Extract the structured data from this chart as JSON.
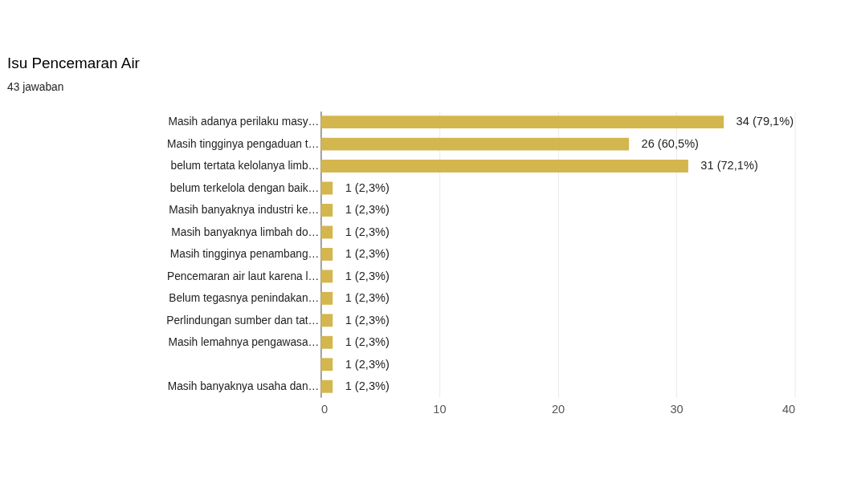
{
  "chart_data": {
    "type": "bar",
    "orientation": "horizontal",
    "title": "Isu  Pencemaran Air",
    "subtitle": "43 jawaban",
    "categories": [
      "Masih adanya perilaku masy…",
      "Masih tingginya pengaduan t…",
      "belum tertata kelolanya limb…",
      "belum terkelola dengan baik…",
      "Masih banyaknya industri ke…",
      "Masih banyaknya limbah do…",
      "Masih tingginya penambang…",
      "Pencemaran air laut karena l…",
      "Belum tegasnya penindakan…",
      "Perlindungan sumber dan tat…",
      "Masih lemahnya pengawasa…",
      null,
      "Masih banyaknya usaha dan…"
    ],
    "values": [
      34,
      26,
      31,
      1,
      1,
      1,
      1,
      1,
      1,
      1,
      1,
      1,
      1
    ],
    "value_labels": [
      "34 (79,1%)",
      "26 (60,5%)",
      "31 (72,1%)",
      "1 (2,3%)",
      "1 (2,3%)",
      "1 (2,3%)",
      "1 (2,3%)",
      "1 (2,3%)",
      "1 (2,3%)",
      "1 (2,3%)",
      "1 (2,3%)",
      "1 (2,3%)",
      "1 (2,3%)"
    ],
    "color": "#d4b64e",
    "xlim": [
      0,
      40
    ],
    "xticks": [
      0,
      10,
      20,
      30,
      40
    ],
    "grid": "x"
  }
}
